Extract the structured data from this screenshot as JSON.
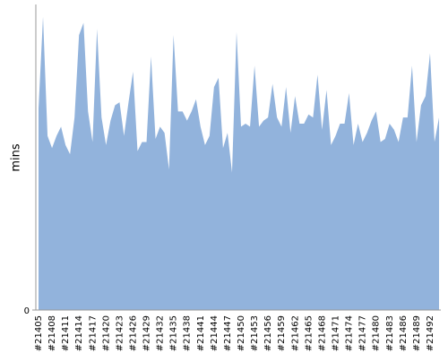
{
  "chart_data": {
    "type": "area",
    "y_label": "mins",
    "color": "#92b3dc",
    "categories": [
      "#21405",
      null,
      null,
      "#21408",
      null,
      null,
      "#21411",
      null,
      null,
      "#21414",
      null,
      null,
      "#21417",
      null,
      null,
      "#21420",
      null,
      null,
      "#21423",
      null,
      null,
      "#21426",
      null,
      null,
      "#21429",
      null,
      null,
      "#21432",
      null,
      null,
      "#21435",
      null,
      null,
      "#21438",
      null,
      null,
      "#21441",
      null,
      null,
      "#21444",
      null,
      null,
      "#21447",
      null,
      null,
      "#21450",
      null,
      null,
      "#21453",
      null,
      null,
      "#21456",
      null,
      null,
      "#21459",
      null,
      null,
      "#21462",
      null,
      null,
      "#21465",
      null,
      null,
      "#21468",
      null,
      null,
      "#21471",
      null,
      null,
      "#21474",
      null,
      null,
      "#21477",
      null,
      null,
      "#21480",
      null,
      null,
      "#21483",
      null,
      null,
      "#21486",
      null,
      null,
      "#21489",
      null,
      null,
      "#21492",
      null,
      null
    ],
    "values": [
      66,
      96,
      57,
      53,
      57,
      60,
      54,
      51,
      63,
      90,
      94,
      65,
      55,
      92,
      63,
      54,
      62,
      67,
      68,
      57,
      68,
      78,
      52,
      55,
      55,
      83,
      56,
      60,
      58,
      46,
      90,
      65,
      65,
      62,
      65,
      69,
      60,
      54,
      57,
      73,
      76,
      53,
      58,
      45,
      91,
      60,
      61,
      60,
      80,
      60,
      62,
      63,
      74,
      63,
      60,
      73,
      58,
      70,
      61,
      61,
      64,
      63,
      77,
      59,
      72,
      54,
      57,
      61,
      61,
      71,
      54,
      61,
      55,
      58,
      62,
      65,
      55,
      56,
      61,
      59,
      55,
      63,
      63,
      80,
      55,
      67,
      70,
      84,
      55,
      63
    ],
    "ylim": [
      0,
      100
    ],
    "yticks": [
      0
    ]
  }
}
